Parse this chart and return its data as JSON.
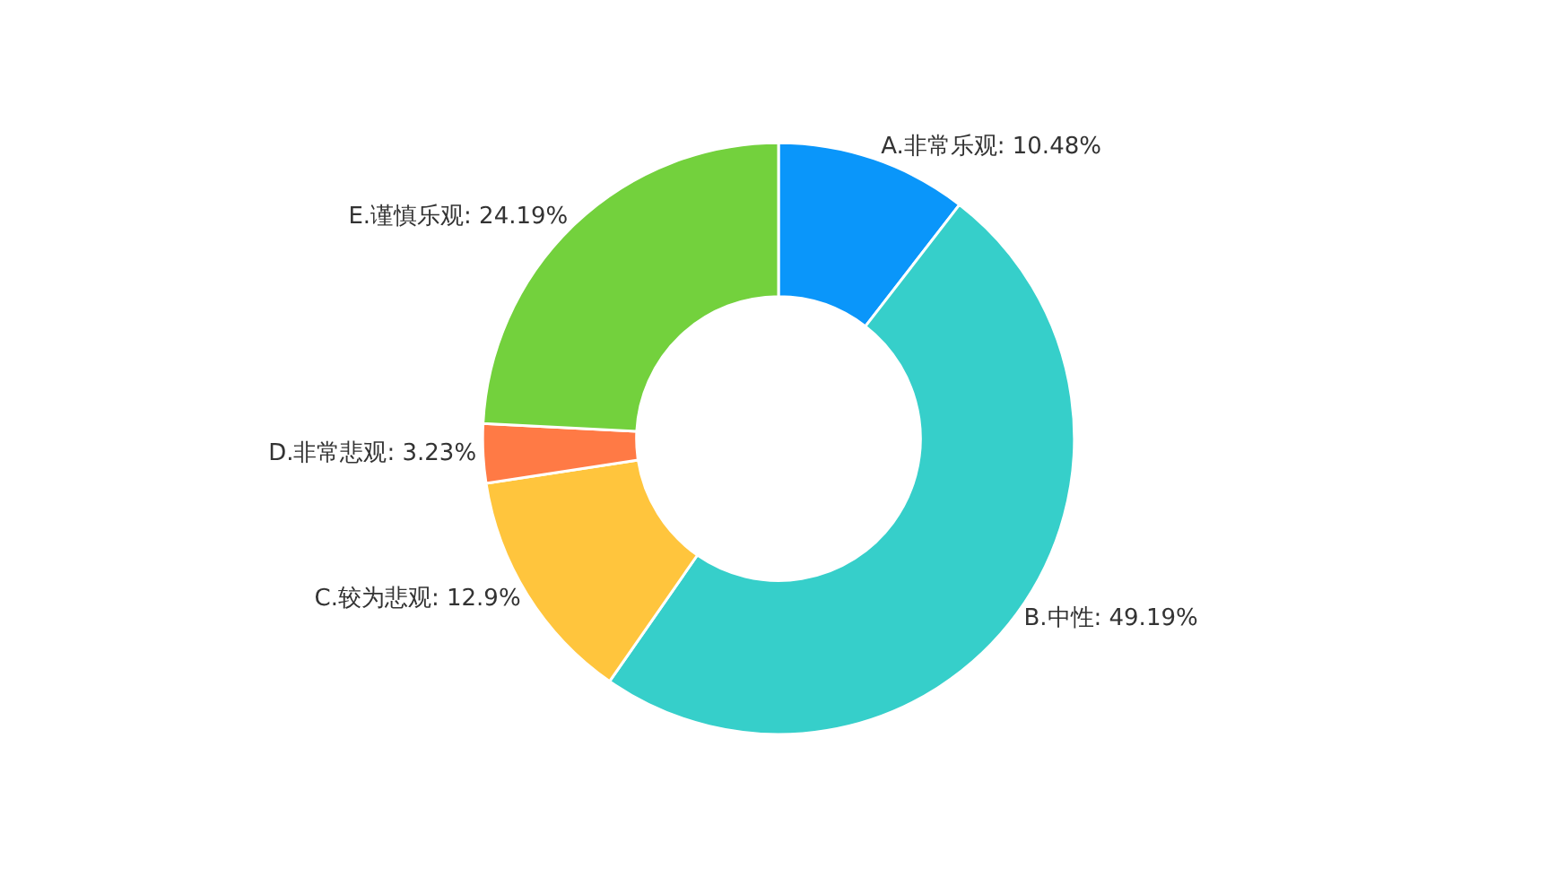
{
  "chart_data": {
    "type": "donut",
    "categories": [
      "A.非常乐观",
      "B.中性",
      "C.较为悲观",
      "D.非常悲观",
      "E.谨慎乐观"
    ],
    "values": [
      10.48,
      49.19,
      12.9,
      3.23,
      24.19
    ],
    "value_labels": [
      "10.48%",
      "49.19%",
      "12.9%",
      "3.23%",
      "24.19%"
    ],
    "colors": [
      "#0a96fa",
      "#36cfca",
      "#ffc53d",
      "#ff7a45",
      "#73d13d"
    ],
    "legend": false
  }
}
